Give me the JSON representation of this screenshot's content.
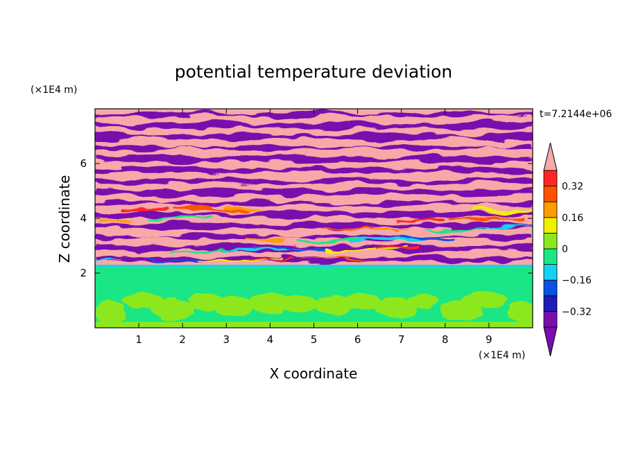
{
  "chart_data": {
    "type": "heatmap",
    "title": "potential temperature deviation",
    "xlabel": "X coordinate",
    "ylabel": "Z coordinate",
    "x_unit": "(×1E4 m)",
    "y_unit": "(×1E4 m)",
    "time_label": "t=7.2144e+06",
    "xlim": [
      0,
      10
    ],
    "ylim": [
      0,
      8
    ],
    "x_ticks": [
      1,
      2,
      3,
      4,
      5,
      6,
      7,
      8,
      9
    ],
    "x_tick_labels": [
      "1",
      "2",
      "3",
      "4",
      "5",
      "6",
      "7",
      "8",
      "9"
    ],
    "y_ticks": [
      2,
      4,
      6
    ],
    "y_tick_labels": [
      "2",
      "4",
      "6"
    ],
    "colorbar": {
      "levels": [
        -0.4,
        -0.32,
        -0.24,
        -0.16,
        -0.08,
        0,
        0.08,
        0.16,
        0.24,
        0.32,
        0.4
      ],
      "labeled_levels": [
        -0.32,
        -0.16,
        0,
        0.16,
        0.32
      ],
      "labels": [
        "−0.32",
        "−0.16",
        "0",
        "0.16",
        "0.32"
      ],
      "colors": [
        "#7a0dae",
        "#1f1ab8",
        "#0a52e6",
        "#15d2ee",
        "#1be686",
        "#8ce81e",
        "#f0f000",
        "#ff9c00",
        "#ff5200",
        "#ff2626",
        "#f7a8a8"
      ],
      "extend": "both"
    },
    "field_summary": {
      "lower_layer_z_max": 2.3,
      "lower_layer_colors": [
        "#1be686",
        "#8ce81e"
      ],
      "upper_layer_colors": [
        "#f7a8a8",
        "#7a0dae"
      ],
      "upper_layer_band_count": 14
    }
  }
}
